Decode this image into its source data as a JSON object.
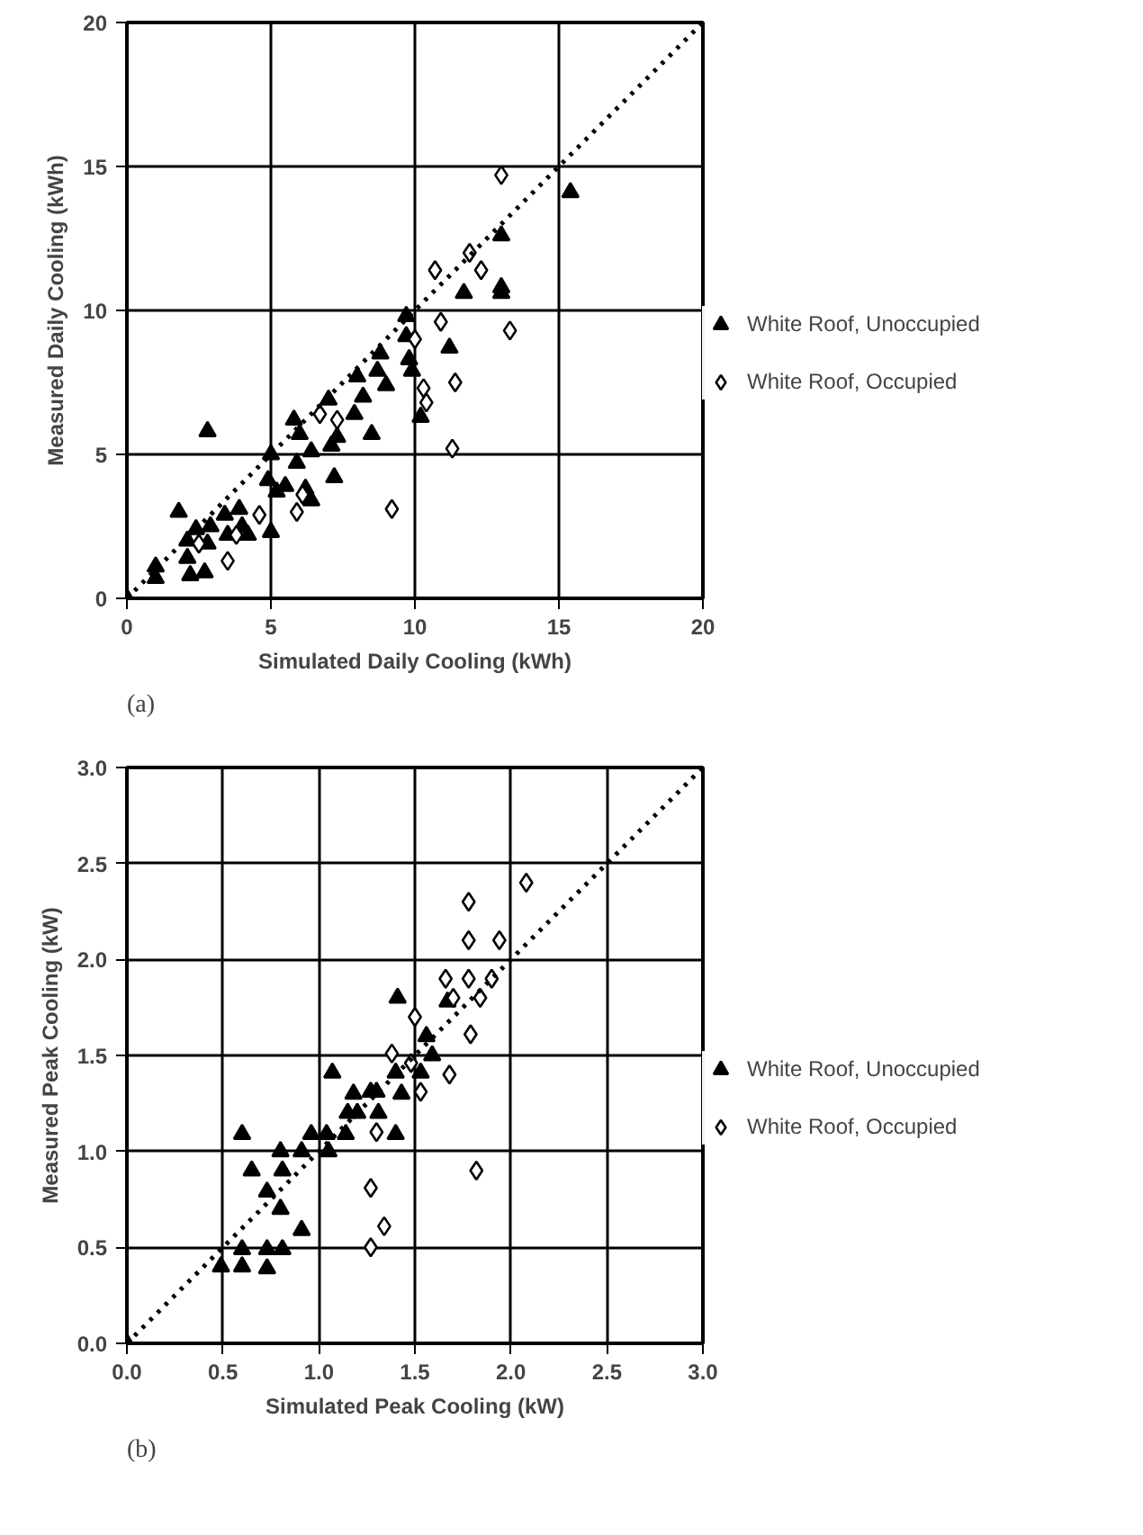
{
  "chart_data": [
    {
      "type": "scatter",
      "xlabel": "Simulated Daily Cooling (kWh)",
      "ylabel": "Measured Daily Cooling (kWh)",
      "annotations": [
        "(a)"
      ],
      "xlim": [
        0,
        20
      ],
      "ylim": [
        0,
        20
      ],
      "xticks": [
        0,
        5,
        10,
        15,
        20
      ],
      "yticks": [
        0,
        5,
        10,
        15,
        20
      ],
      "grid": true,
      "legend": "right",
      "series": [
        {
          "name": "White Roof, Unoccupied",
          "color": "#000000",
          "marker": "triangle",
          "x": [
            2.8,
            15.4,
            13.0,
            13.0,
            13.0,
            11.7,
            11.2,
            9.7,
            9.7,
            9.8,
            9.9,
            10.2,
            8.8,
            8.7,
            9.0,
            8.0,
            8.2,
            7.9,
            7.0,
            8.5,
            7.3,
            7.1,
            5.8,
            6.0,
            6.4,
            5.9,
            5.0,
            7.2,
            4.9,
            5.5,
            5.2,
            6.2,
            6.4,
            5.0,
            3.9,
            3.4,
            4.0,
            4.2,
            3.5,
            2.9,
            1.8,
            2.4,
            2.1,
            2.8,
            2.1,
            2.2,
            2.7,
            1.0,
            1.0,
            0
          ],
          "values": [
            5.8,
            14.1,
            12.6,
            10.8,
            10.6,
            10.6,
            8.7,
            9.8,
            9.1,
            8.3,
            7.9,
            6.3,
            8.5,
            7.9,
            7.4,
            7.7,
            7.0,
            6.4,
            6.9,
            5.7,
            5.6,
            5.3,
            6.2,
            5.7,
            5.1,
            4.7,
            5.0,
            4.2,
            4.1,
            3.9,
            3.7,
            3.8,
            3.4,
            2.3,
            3.1,
            2.9,
            2.5,
            2.2,
            2.2,
            2.5,
            3.0,
            2.4,
            2.0,
            1.9,
            1.4,
            0.8,
            0.9,
            1.1,
            0.7,
            0
          ]
        },
        {
          "name": "White Roof, Occupied",
          "color": "#000000",
          "marker": "diamond",
          "x": [
            13.0,
            11.9,
            12.3,
            10.7,
            10.9,
            10.0,
            13.3,
            10.3,
            10.4,
            11.4,
            6.7,
            7.3,
            11.3,
            9.2,
            5.9,
            6.1,
            4.6,
            3.8,
            3.5,
            2.5
          ],
          "values": [
            14.7,
            12.0,
            11.4,
            11.4,
            9.6,
            9.0,
            9.3,
            7.3,
            6.8,
            7.5,
            6.4,
            6.2,
            5.2,
            3.1,
            3.0,
            3.6,
            2.9,
            2.2,
            1.3,
            1.9
          ]
        },
        {
          "type": "line",
          "color": "#000000",
          "marker": "none",
          "line_style": "dotted",
          "x": [
            0,
            20
          ],
          "values": [
            0,
            20
          ]
        }
      ]
    },
    {
      "type": "scatter",
      "xlabel": "Simulated Peak Cooling (kW)",
      "ylabel": "Measured Peak Cooling (kW)",
      "annotations": [
        "(b)"
      ],
      "xlim": [
        0,
        3
      ],
      "ylim": [
        0,
        3
      ],
      "xticks": [
        {
          "value": 0,
          "label": "0.0"
        },
        0.5,
        {
          "value": 1,
          "label": "1.0"
        },
        1.5,
        {
          "value": 2,
          "label": "2.0"
        },
        2.5,
        {
          "value": 3,
          "label": "3.0"
        }
      ],
      "yticks": [
        {
          "value": 0,
          "label": "0.0"
        },
        0.5,
        {
          "value": 1,
          "label": "1.0"
        },
        1.5,
        {
          "value": 2,
          "label": "2.0"
        },
        2.5,
        {
          "value": 3,
          "label": "3.0"
        }
      ],
      "grid": true,
      "legend": "right",
      "series": [
        {
          "name": "White Roof, Unoccupied",
          "color": "#000000",
          "marker": "triangle",
          "x": [
            0,
            1.41,
            1.56,
            1.59,
            1.53,
            1.43,
            1.4,
            1.07,
            1.18,
            1.27,
            1.3,
            1.15,
            1.2,
            1.31,
            1.14,
            1.04,
            0.96,
            1.4,
            1.67,
            0.6,
            0.8,
            0.91,
            1.05,
            0.65,
            0.81,
            0.73,
            0.8,
            0.91,
            0.6,
            0.73,
            0.81,
            0.49,
            0.6,
            0.73
          ],
          "values": [
            0,
            1.8,
            1.6,
            1.5,
            1.41,
            1.3,
            1.41,
            1.41,
            1.3,
            1.31,
            1.31,
            1.2,
            1.2,
            1.2,
            1.09,
            1.09,
            1.09,
            1.09,
            1.78,
            1.09,
            1.0,
            1.0,
            1.0,
            0.9,
            0.9,
            0.79,
            0.7,
            0.59,
            0.49,
            0.49,
            0.49,
            0.4,
            0.4,
            0.39
          ]
        },
        {
          "name": "White Roof, Occupied",
          "color": "#000000",
          "marker": "diamond",
          "x": [
            2.08,
            1.78,
            1.78,
            1.94,
            1.66,
            1.78,
            1.9,
            1.7,
            1.84,
            1.5,
            1.79,
            1.38,
            1.48,
            1.68,
            1.53,
            1.3,
            1.82,
            1.27,
            1.34,
            1.27
          ],
          "values": [
            2.4,
            2.3,
            2.1,
            2.1,
            1.9,
            1.9,
            1.9,
            1.8,
            1.8,
            1.7,
            1.61,
            1.51,
            1.46,
            1.4,
            1.31,
            1.1,
            0.9,
            0.81,
            0.61,
            0.5
          ]
        },
        {
          "type": "line",
          "color": "#000000",
          "marker": "none",
          "line_style": "dotted",
          "x": [
            0,
            3
          ],
          "values": [
            0,
            3
          ]
        }
      ]
    }
  ]
}
